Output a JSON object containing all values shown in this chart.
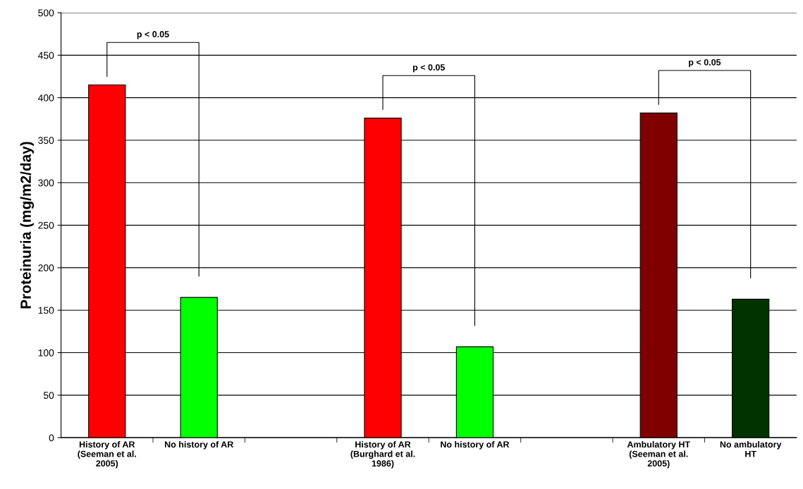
{
  "chart_data": {
    "type": "bar",
    "categories": [
      "History of AR\n(Seeman et al.\n2005)",
      "No history of AR",
      null,
      "History of AR\n(Burghard et al.\n1986)",
      "No history of AR",
      null,
      "Ambulatory HT\n(Seeman et al.\n2005)",
      "No ambulatory\nHT"
    ],
    "values": [
      415,
      165,
      null,
      376,
      107,
      null,
      382,
      163
    ],
    "colors": [
      "#ff0000",
      "#00ff00",
      "#ffffff",
      "#ff0000",
      "#00ff00",
      "#ffffff",
      "#800000",
      "#003300"
    ],
    "ylabel": "Proteinuria (mg/m2/day)",
    "ylim": [
      0,
      500
    ],
    "yticks": [
      0,
      50,
      100,
      150,
      200,
      250,
      300,
      350,
      400,
      450,
      500
    ],
    "grid": "y",
    "legend": false,
    "annotations": [
      "p < 0.05",
      "p < 0.05",
      "p < 0.05"
    ]
  }
}
